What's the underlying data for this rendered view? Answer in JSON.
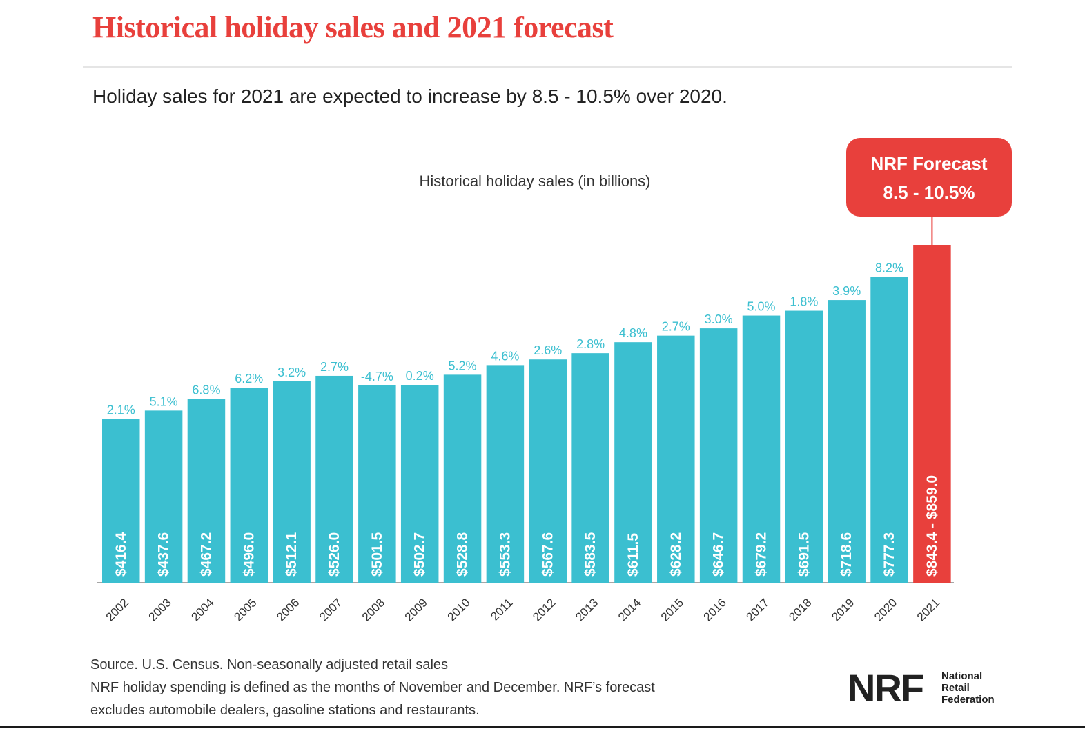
{
  "title": "Historical holiday sales and 2021 forecast",
  "subtitle": "Holiday sales for 2021 are expected to increase by 8.5 - 10.5% over 2020.",
  "footnotes": [
    "Source. U.S. Census. Non-seasonally adjusted retail sales",
    "NRF holiday spending is defined as the months of November and December. NRF’s forecast",
    "excludes automobile dealers, gasoline stations and restaurants."
  ],
  "logo": {
    "mark": "NRF",
    "lines": [
      "National",
      "Retail",
      "Federation"
    ]
  },
  "colors": {
    "title": "#e8403c",
    "bar": "#3bbfd0",
    "forecast": "#e8403c",
    "growth_label": "#3bbfd0"
  },
  "chart_data": {
    "type": "bar",
    "title": "Historical holiday sales (in billions)",
    "categories": [
      "2002",
      "2003",
      "2004",
      "2005",
      "2006",
      "2007",
      "2008",
      "2009",
      "2010",
      "2011",
      "2012",
      "2013",
      "2014",
      "2015",
      "2016",
      "2017",
      "2018",
      "2019",
      "2020",
      "2021"
    ],
    "values": [
      416.4,
      437.6,
      467.2,
      496.0,
      512.1,
      526.0,
      501.5,
      502.7,
      528.8,
      553.3,
      567.6,
      583.5,
      611.5,
      628.2,
      646.7,
      679.2,
      691.5,
      718.6,
      777.3,
      859.0
    ],
    "value_labels": [
      "$416.4",
      "$437.6",
      "$467.2",
      "$496.0",
      "$512.1",
      "$526.0",
      "$501.5",
      "$502.7",
      "$528.8",
      "$553.3",
      "$567.6",
      "$583.5",
      "$611.5",
      "$628.2",
      "$646.7",
      "$679.2",
      "$691.5",
      "$718.6",
      "$777.3",
      "$843.4 - $859.0"
    ],
    "growth_labels": [
      "2.1%",
      "5.1%",
      "6.8%",
      "6.2%",
      "3.2%",
      "2.7%",
      "-4.7%",
      "0.2%",
      "5.2%",
      "4.6%",
      "2.6%",
      "2.8%",
      "4.8%",
      "2.7%",
      "3.0%",
      "5.0%",
      "1.8%",
      "3.9%",
      "8.2%",
      ""
    ],
    "forecast_index": 19,
    "forecast_range": [
      843.4,
      859.0
    ],
    "forecast_callout": [
      "NRF Forecast",
      "8.5 - 10.5%"
    ],
    "ylim": [
      0,
      859.0
    ],
    "grid": false,
    "legend": "none"
  }
}
